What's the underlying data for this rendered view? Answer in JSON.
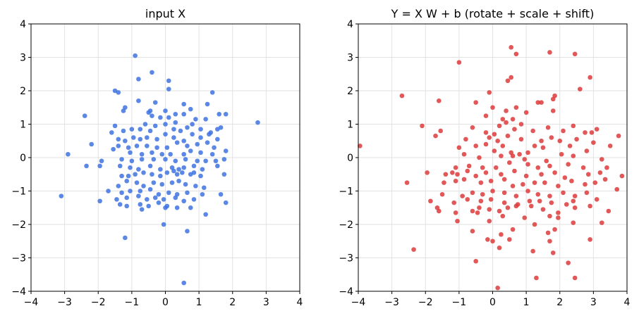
{
  "chart_data": [
    {
      "type": "scatter",
      "title": "input  X",
      "xlabel": "",
      "ylabel": "",
      "xlim": [
        -4,
        4
      ],
      "ylim": [
        -4,
        4
      ],
      "xticks": [
        "−4",
        "−3",
        "−2",
        "−1",
        "0",
        "1",
        "2",
        "3",
        "4"
      ],
      "yticks": [
        "−4",
        "−3",
        "−2",
        "−1",
        "0",
        "1",
        "2",
        "3",
        "4"
      ],
      "grid": true,
      "color": "#3f73e0",
      "points": [
        [
          -0.9,
          3.05
        ],
        [
          -0.4,
          2.55
        ],
        [
          0.1,
          2.3
        ],
        [
          -1.5,
          2.0
        ],
        [
          -1.4,
          1.95
        ],
        [
          -0.8,
          2.35
        ],
        [
          1.4,
          1.95
        ],
        [
          0.1,
          2.05
        ],
        [
          -0.8,
          1.7
        ],
        [
          -0.3,
          1.65
        ],
        [
          -1.2,
          1.5
        ],
        [
          -1.25,
          1.4
        ],
        [
          -0.5,
          1.35
        ],
        [
          -0.45,
          1.4
        ],
        [
          0.0,
          1.4
        ],
        [
          0.3,
          1.3
        ],
        [
          0.55,
          1.3
        ],
        [
          0.75,
          1.45
        ],
        [
          0.55,
          1.6
        ],
        [
          0.3,
          1.05
        ],
        [
          0.1,
          1.2
        ],
        [
          -0.15,
          1.2
        ],
        [
          -0.4,
          1.25
        ],
        [
          -0.6,
          1.0
        ],
        [
          1.25,
          1.6
        ],
        [
          1.6,
          1.3
        ],
        [
          1.8,
          1.3
        ],
        [
          1.2,
          1.15
        ],
        [
          0.9,
          1.15
        ],
        [
          -1.6,
          0.75
        ],
        [
          -1.5,
          0.95
        ],
        [
          -1.25,
          0.8
        ],
        [
          -1.0,
          0.85
        ],
        [
          -0.75,
          0.85
        ],
        [
          -0.45,
          0.8
        ],
        [
          -0.3,
          0.95
        ],
        [
          0.0,
          1.0
        ],
        [
          0.25,
          0.85
        ],
        [
          0.45,
          0.8
        ],
        [
          0.65,
          0.9
        ],
        [
          0.8,
          1.0
        ],
        [
          1.05,
          0.85
        ],
        [
          1.35,
          0.75
        ],
        [
          1.55,
          0.85
        ],
        [
          1.65,
          0.9
        ],
        [
          2.75,
          1.05
        ],
        [
          -2.4,
          1.25
        ],
        [
          -1.4,
          0.55
        ],
        [
          -1.2,
          0.5
        ],
        [
          -0.95,
          0.6
        ],
        [
          -0.75,
          0.55
        ],
        [
          -0.55,
          0.6
        ],
        [
          -0.25,
          0.55
        ],
        [
          0.0,
          0.7
        ],
        [
          0.25,
          0.6
        ],
        [
          0.55,
          0.5
        ],
        [
          0.8,
          0.7
        ],
        [
          1.05,
          0.6
        ],
        [
          1.3,
          0.7
        ],
        [
          1.55,
          0.55
        ],
        [
          -2.2,
          0.4
        ],
        [
          -1.4,
          0.35
        ],
        [
          -1.1,
          0.3
        ],
        [
          -0.85,
          0.35
        ],
        [
          -0.55,
          0.35
        ],
        [
          -0.25,
          0.3
        ],
        [
          0.05,
          0.3
        ],
        [
          0.35,
          0.45
        ],
        [
          0.65,
          0.35
        ],
        [
          0.95,
          0.4
        ],
        [
          1.25,
          0.45
        ],
        [
          1.45,
          0.3
        ],
        [
          -2.9,
          0.1
        ],
        [
          -1.55,
          0.25
        ],
        [
          -1.05,
          0.15
        ],
        [
          -0.7,
          0.1
        ],
        [
          -0.4,
          0.15
        ],
        [
          -0.1,
          0.1
        ],
        [
          0.15,
          0.1
        ],
        [
          0.55,
          0.1
        ],
        [
          0.75,
          0.2
        ],
        [
          1.05,
          0.15
        ],
        [
          1.4,
          0.1
        ],
        [
          1.8,
          0.2
        ],
        [
          -1.9,
          -0.1
        ],
        [
          -1.3,
          -0.05
        ],
        [
          -1.0,
          -0.1
        ],
        [
          -0.7,
          -0.05
        ],
        [
          -0.35,
          -0.05
        ],
        [
          0.0,
          -0.05
        ],
        [
          0.3,
          -0.1
        ],
        [
          0.6,
          -0.05
        ],
        [
          0.95,
          -0.1
        ],
        [
          1.2,
          -0.1
        ],
        [
          1.5,
          -0.1
        ],
        [
          1.75,
          -0.05
        ],
        [
          -2.35,
          -0.25
        ],
        [
          -1.95,
          -0.25
        ],
        [
          -1.35,
          -0.25
        ],
        [
          -1.05,
          -0.3
        ],
        [
          -0.8,
          -0.35
        ],
        [
          -0.45,
          -0.25
        ],
        [
          -0.15,
          -0.35
        ],
        [
          0.2,
          -0.3
        ],
        [
          0.4,
          -0.35
        ],
        [
          0.55,
          -0.3
        ],
        [
          0.85,
          -0.25
        ],
        [
          1.1,
          -0.35
        ],
        [
          1.55,
          -0.25
        ],
        [
          -1.3,
          -0.55
        ],
        [
          -1.1,
          -0.55
        ],
        [
          -0.9,
          -0.5
        ],
        [
          -0.65,
          -0.45
        ],
        [
          -0.4,
          -0.5
        ],
        [
          -0.15,
          -0.55
        ],
        [
          0.05,
          -0.45
        ],
        [
          0.25,
          -0.4
        ],
        [
          0.35,
          -0.5
        ],
        [
          0.5,
          -0.45
        ],
        [
          0.75,
          -0.5
        ],
        [
          0.85,
          -0.45
        ],
        [
          1.05,
          -0.55
        ],
        [
          1.75,
          -0.5
        ],
        [
          -1.4,
          -0.85
        ],
        [
          -1.15,
          -0.7
        ],
        [
          -0.85,
          -0.75
        ],
        [
          -0.65,
          -0.85
        ],
        [
          -0.35,
          -0.75
        ],
        [
          -0.1,
          -0.8
        ],
        [
          0.2,
          -0.75
        ],
        [
          0.4,
          -0.7
        ],
        [
          0.6,
          -0.8
        ],
        [
          0.9,
          -0.85
        ],
        [
          1.15,
          -0.9
        ],
        [
          -1.7,
          -1.0
        ],
        [
          -1.3,
          -1.05
        ],
        [
          -1.05,
          -1.0
        ],
        [
          -0.75,
          -1.0
        ],
        [
          -0.45,
          -0.95
        ],
        [
          -0.2,
          -1.1
        ],
        [
          0.1,
          -1.05
        ],
        [
          0.35,
          -1.1
        ],
        [
          0.65,
          -1.05
        ],
        [
          1.1,
          -1.1
        ],
        [
          1.65,
          -1.1
        ],
        [
          -3.1,
          -1.15
        ],
        [
          -1.95,
          -1.3
        ],
        [
          -1.45,
          -1.25
        ],
        [
          -1.15,
          -1.2
        ],
        [
          -0.8,
          -1.15
        ],
        [
          -0.55,
          -1.25
        ],
        [
          -0.3,
          -1.2
        ],
        [
          -0.05,
          -1.25
        ],
        [
          0.3,
          -1.2
        ],
        [
          0.55,
          -1.3
        ],
        [
          0.85,
          -1.25
        ],
        [
          -1.35,
          -1.4
        ],
        [
          -1.15,
          -1.45
        ],
        [
          -0.75,
          -1.4
        ],
        [
          -0.5,
          -1.45
        ],
        [
          -0.2,
          -1.35
        ],
        [
          0.05,
          -1.45
        ],
        [
          0.35,
          -1.5
        ],
        [
          0.75,
          -1.5
        ],
        [
          1.8,
          -1.35
        ],
        [
          -0.7,
          -1.55
        ],
        [
          0.0,
          -1.5
        ],
        [
          1.2,
          -1.7
        ],
        [
          0.65,
          -2.2
        ],
        [
          -0.05,
          -2.0
        ],
        [
          -1.2,
          -2.4
        ],
        [
          0.55,
          -3.75
        ]
      ]
    },
    {
      "type": "scatter",
      "title": "Y = X W + b  (rotate + scale + shift)",
      "xlabel": "",
      "ylabel": "",
      "xlim": [
        -4,
        4
      ],
      "ylim": [
        -4,
        4
      ],
      "xticks": [
        "−4",
        "−3",
        "−2",
        "−1",
        "0",
        "1",
        "2",
        "3",
        "4"
      ],
      "yticks": [
        "−4",
        "−3",
        "−2",
        "−1",
        "0",
        "1",
        "2",
        "3",
        "4"
      ],
      "grid": true,
      "color": "#dd3a3a",
      "points": [
        [
          0.55,
          3.3
        ],
        [
          0.7,
          3.1
        ],
        [
          1.7,
          3.15
        ],
        [
          2.45,
          3.1
        ],
        [
          -1.0,
          2.85
        ],
        [
          0.45,
          2.3
        ],
        [
          0.55,
          2.4
        ],
        [
          2.6,
          2.05
        ],
        [
          2.9,
          2.4
        ],
        [
          -2.7,
          1.85
        ],
        [
          -1.6,
          1.7
        ],
        [
          -0.5,
          1.65
        ],
        [
          -0.1,
          1.95
        ],
        [
          1.35,
          1.65
        ],
        [
          1.45,
          1.65
        ],
        [
          1.85,
          1.85
        ],
        [
          1.8,
          1.75
        ],
        [
          0.0,
          1.5
        ],
        [
          0.4,
          1.4
        ],
        [
          0.7,
          1.5
        ],
        [
          1.0,
          1.35
        ],
        [
          1.8,
          1.4
        ],
        [
          -0.2,
          1.25
        ],
        [
          0.3,
          1.15
        ],
        [
          0.6,
          1.15
        ],
        [
          -2.1,
          0.95
        ],
        [
          -1.55,
          0.8
        ],
        [
          -1.7,
          0.65
        ],
        [
          -0.6,
          0.9
        ],
        [
          -0.2,
          0.75
        ],
        [
          0.05,
          0.7
        ],
        [
          0.2,
          0.95
        ],
        [
          0.4,
          1.05
        ],
        [
          0.65,
          0.85
        ],
        [
          0.85,
          1.0
        ],
        [
          1.2,
          0.8
        ],
        [
          1.65,
          0.9
        ],
        [
          2.1,
          0.8
        ],
        [
          2.4,
          0.95
        ],
        [
          2.75,
          0.75
        ],
        [
          2.95,
          0.75
        ],
        [
          3.1,
          0.85
        ],
        [
          3.75,
          0.65
        ],
        [
          -3.95,
          0.35
        ],
        [
          -0.8,
          0.55
        ],
        [
          -0.1,
          0.6
        ],
        [
          0.15,
          0.5
        ],
        [
          0.45,
          0.65
        ],
        [
          0.85,
          0.55
        ],
        [
          1.25,
          0.35
        ],
        [
          1.45,
          0.5
        ],
        [
          1.75,
          0.6
        ],
        [
          2.0,
          0.5
        ],
        [
          2.5,
          0.55
        ],
        [
          3.0,
          0.45
        ],
        [
          -1.0,
          0.3
        ],
        [
          -0.5,
          0.35
        ],
        [
          -0.2,
          0.4
        ],
        [
          0.05,
          0.2
        ],
        [
          0.3,
          0.35
        ],
        [
          0.55,
          0.15
        ],
        [
          0.8,
          0.1
        ],
        [
          1.05,
          0.15
        ],
        [
          1.5,
          0.3
        ],
        [
          2.3,
          0.35
        ],
        [
          2.8,
          0.2
        ],
        [
          3.5,
          0.35
        ],
        [
          -0.85,
          0.1
        ],
        [
          -0.4,
          0.0
        ],
        [
          0.25,
          0.05
        ],
        [
          0.6,
          0.05
        ],
        [
          0.95,
          -0.05
        ],
        [
          1.6,
          -0.1
        ],
        [
          2.05,
          0.1
        ],
        [
          2.4,
          0.05
        ],
        [
          3.25,
          -0.05
        ],
        [
          -1.1,
          -0.3
        ],
        [
          -0.7,
          -0.25
        ],
        [
          -0.3,
          -0.3
        ],
        [
          0.1,
          -0.3
        ],
        [
          0.5,
          -0.15
        ],
        [
          1.05,
          -0.2
        ],
        [
          1.35,
          -0.3
        ],
        [
          1.7,
          -0.25
        ],
        [
          2.25,
          -0.2
        ],
        [
          2.7,
          -0.3
        ],
        [
          3.4,
          -0.3
        ],
        [
          -1.95,
          -0.45
        ],
        [
          -1.4,
          -0.5
        ],
        [
          -1.2,
          -0.45
        ],
        [
          -1.05,
          -0.5
        ],
        [
          -0.75,
          -0.4
        ],
        [
          -0.5,
          -0.55
        ],
        [
          -0.2,
          -0.45
        ],
        [
          0.25,
          -0.5
        ],
        [
          0.65,
          -0.4
        ],
        [
          1.0,
          -0.55
        ],
        [
          1.45,
          -0.5
        ],
        [
          1.85,
          -0.45
        ],
        [
          2.15,
          -0.6
        ],
        [
          2.85,
          -0.5
        ],
        [
          3.2,
          -0.45
        ],
        [
          3.85,
          -0.55
        ],
        [
          -2.55,
          -0.75
        ],
        [
          -1.45,
          -0.75
        ],
        [
          -1.1,
          -0.7
        ],
        [
          -0.85,
          -0.65
        ],
        [
          -0.35,
          -0.75
        ],
        [
          -0.05,
          -0.7
        ],
        [
          0.35,
          -0.65
        ],
        [
          0.6,
          -0.85
        ],
        [
          0.9,
          -0.8
        ],
        [
          1.25,
          -0.75
        ],
        [
          1.55,
          -0.75
        ],
        [
          1.95,
          -0.85
        ],
        [
          2.35,
          -0.7
        ],
        [
          2.75,
          -0.8
        ],
        [
          3.05,
          -0.75
        ],
        [
          3.35,
          -0.65
        ],
        [
          -1.5,
          -1.1
        ],
        [
          -0.9,
          -1.15
        ],
        [
          -0.6,
          -1.05
        ],
        [
          -0.3,
          -1.1
        ],
        [
          0.0,
          -1.0
        ],
        [
          0.35,
          -1.05
        ],
        [
          0.7,
          -1.15
        ],
        [
          1.05,
          -1.0
        ],
        [
          1.35,
          -1.1
        ],
        [
          1.7,
          -1.15
        ],
        [
          2.1,
          -1.05
        ],
        [
          2.45,
          -1.15
        ],
        [
          2.8,
          -1.05
        ],
        [
          3.1,
          -1.25
        ],
        [
          3.7,
          -0.95
        ],
        [
          -1.85,
          -1.3
        ],
        [
          -1.15,
          -1.35
        ],
        [
          -0.75,
          -1.25
        ],
        [
          -0.35,
          -1.3
        ],
        [
          -0.05,
          -1.25
        ],
        [
          0.35,
          -1.35
        ],
        [
          0.75,
          -1.4
        ],
        [
          1.1,
          -1.3
        ],
        [
          1.4,
          -1.3
        ],
        [
          1.75,
          -1.35
        ],
        [
          2.2,
          -1.4
        ],
        [
          2.4,
          -1.3
        ],
        [
          2.9,
          -1.45
        ],
        [
          -1.65,
          -1.5
        ],
        [
          -1.1,
          -1.65
        ],
        [
          -0.6,
          -1.6
        ],
        [
          -0.4,
          -1.5
        ],
        [
          -0.1,
          -1.55
        ],
        [
          0.2,
          -1.6
        ],
        [
          0.45,
          -1.5
        ],
        [
          0.7,
          -1.45
        ],
        [
          1.15,
          -1.45
        ],
        [
          1.5,
          -1.55
        ],
        [
          1.95,
          -1.65
        ],
        [
          2.45,
          -1.5
        ],
        [
          -1.6,
          -1.6
        ],
        [
          -0.45,
          -1.65
        ],
        [
          0.3,
          -1.75
        ],
        [
          0.95,
          -1.8
        ],
        [
          1.7,
          -1.75
        ],
        [
          1.95,
          -1.8
        ],
        [
          -1.05,
          -1.9
        ],
        [
          -0.1,
          -1.9
        ],
        [
          0.6,
          -2.15
        ],
        [
          1.25,
          -2.0
        ],
        [
          2.4,
          -1.95
        ],
        [
          3.25,
          -1.95
        ],
        [
          3.45,
          -1.6
        ],
        [
          -0.6,
          -2.2
        ],
        [
          0.25,
          -2.3
        ],
        [
          1.65,
          -2.25
        ],
        [
          1.85,
          -2.15
        ],
        [
          2.9,
          -2.45
        ],
        [
          -0.15,
          -2.45
        ],
        [
          0.0,
          -2.5
        ],
        [
          0.5,
          -2.45
        ],
        [
          1.7,
          -2.5
        ],
        [
          0.2,
          -2.7
        ],
        [
          -2.35,
          -2.75
        ],
        [
          1.2,
          -2.8
        ],
        [
          1.8,
          -2.85
        ],
        [
          -0.5,
          -3.1
        ],
        [
          2.25,
          -3.15
        ],
        [
          1.3,
          -3.6
        ],
        [
          2.45,
          -3.6
        ],
        [
          0.15,
          -3.9
        ]
      ]
    }
  ]
}
